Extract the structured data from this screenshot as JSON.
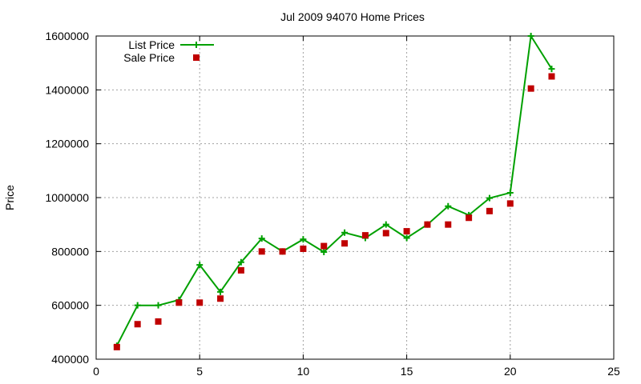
{
  "chart_data": {
    "type": "line",
    "title": "Jul 2009 94070 Home Prices",
    "xlabel": "",
    "ylabel": "Price",
    "xlim": [
      0,
      25
    ],
    "ylim": [
      400000,
      1600000
    ],
    "xticks": [
      "0",
      "5",
      "10",
      "15",
      "20",
      "25"
    ],
    "yticks": [
      "400000",
      "600000",
      "800000",
      "1000000",
      "1200000",
      "1400000",
      "1600000"
    ],
    "grid": true,
    "legend_position": "top-left",
    "series": [
      {
        "name": "List Price",
        "kind": "line-with-plus-markers",
        "color": "#00a000",
        "points": [
          [
            1,
            450000
          ],
          [
            2,
            600000
          ],
          [
            3,
            600000
          ],
          [
            4,
            620000
          ],
          [
            5,
            750000
          ],
          [
            6,
            650000
          ],
          [
            7,
            760000
          ],
          [
            8,
            848000
          ],
          [
            9,
            800000
          ],
          [
            10,
            845000
          ],
          [
            11,
            798000
          ],
          [
            12,
            870000
          ],
          [
            13,
            850000
          ],
          [
            14,
            900000
          ],
          [
            15,
            850000
          ],
          [
            16,
            900000
          ],
          [
            17,
            968000
          ],
          [
            18,
            935000
          ],
          [
            19,
            998000
          ],
          [
            20,
            1018000
          ],
          [
            21,
            1600000
          ],
          [
            22,
            1478000
          ]
        ]
      },
      {
        "name": "Sale Price",
        "kind": "square-markers",
        "color": "#c00000",
        "points": [
          [
            1,
            445000
          ],
          [
            2,
            530000
          ],
          [
            3,
            540000
          ],
          [
            4,
            610000
          ],
          [
            5,
            610000
          ],
          [
            6,
            625000
          ],
          [
            7,
            730000
          ],
          [
            8,
            800000
          ],
          [
            9,
            800000
          ],
          [
            10,
            810000
          ],
          [
            11,
            820000
          ],
          [
            12,
            830000
          ],
          [
            13,
            860000
          ],
          [
            14,
            868000
          ],
          [
            15,
            875000
          ],
          [
            16,
            900000
          ],
          [
            17,
            900000
          ],
          [
            18,
            925000
          ],
          [
            19,
            950000
          ],
          [
            20,
            978000
          ],
          [
            21,
            1405000
          ],
          [
            22,
            1450000
          ]
        ]
      }
    ]
  }
}
